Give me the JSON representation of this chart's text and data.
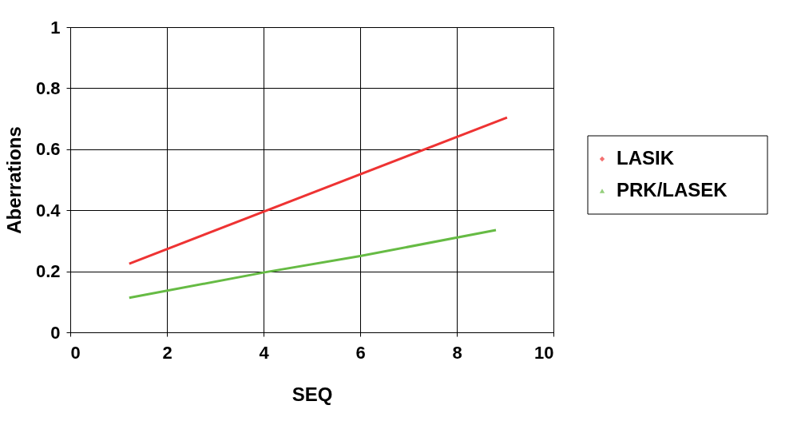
{
  "chart_data": {
    "type": "line",
    "xlabel": "SEQ",
    "ylabel": "Aberrations",
    "xlim": [
      0,
      10
    ],
    "ylim": [
      0,
      1
    ],
    "xticks": [
      0,
      2,
      4,
      6,
      8,
      10
    ],
    "yticks": [
      0,
      0.2,
      0.4,
      0.6,
      0.8,
      1
    ],
    "grid": true,
    "legend": "right",
    "series": [
      {
        "name": "LASIK",
        "color": "#ee3333",
        "x": [
          1.22,
          9.04
        ],
        "values": [
          0.225,
          0.704
        ]
      },
      {
        "name": "PRK/LASEK",
        "color": "#66bb44",
        "x": [
          1.22,
          4,
          6,
          8.81
        ],
        "values": [
          0.113,
          0.196,
          0.25,
          0.335
        ]
      }
    ]
  }
}
